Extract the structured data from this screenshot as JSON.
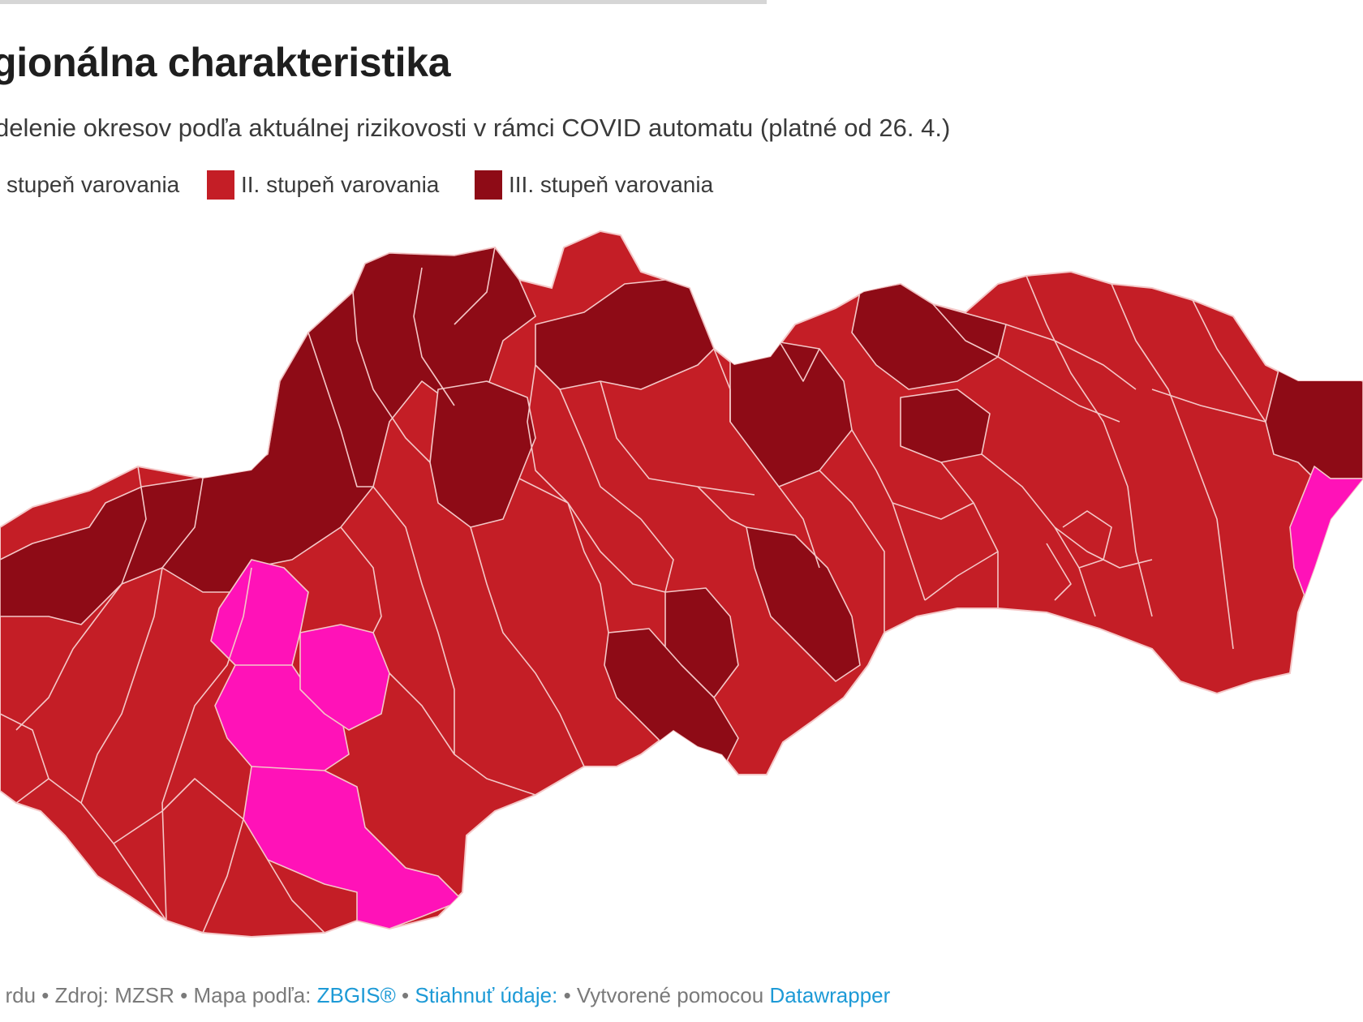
{
  "title": "gionálna charakteristika",
  "subtitle": "delenie okresov podľa aktuálnej rizikovosti v rámci COVID automatu (platné od 26. 4.)",
  "legend": [
    {
      "label": "stupeň varovania",
      "color": "#ff12b8"
    },
    {
      "label": "II. stupeň varovania",
      "color": "#c41e26"
    },
    {
      "label": "III. stupeň varovania",
      "color": "#8e0b16"
    }
  ],
  "colors": {
    "level1": "#ff12b8",
    "level2": "#c41e26",
    "level3": "#8e0b16",
    "border": "#f4c7c7"
  },
  "footer": {
    "prefix": ": rdu • Zdroj: MZSR • Mapa podľa:",
    "zbgis": "ZBGIS®",
    "sep1": "•",
    "download": "Stiahnuť údaje:",
    "sep2": "• Vytvorené pomocou",
    "dw": "Datawrapper"
  }
}
